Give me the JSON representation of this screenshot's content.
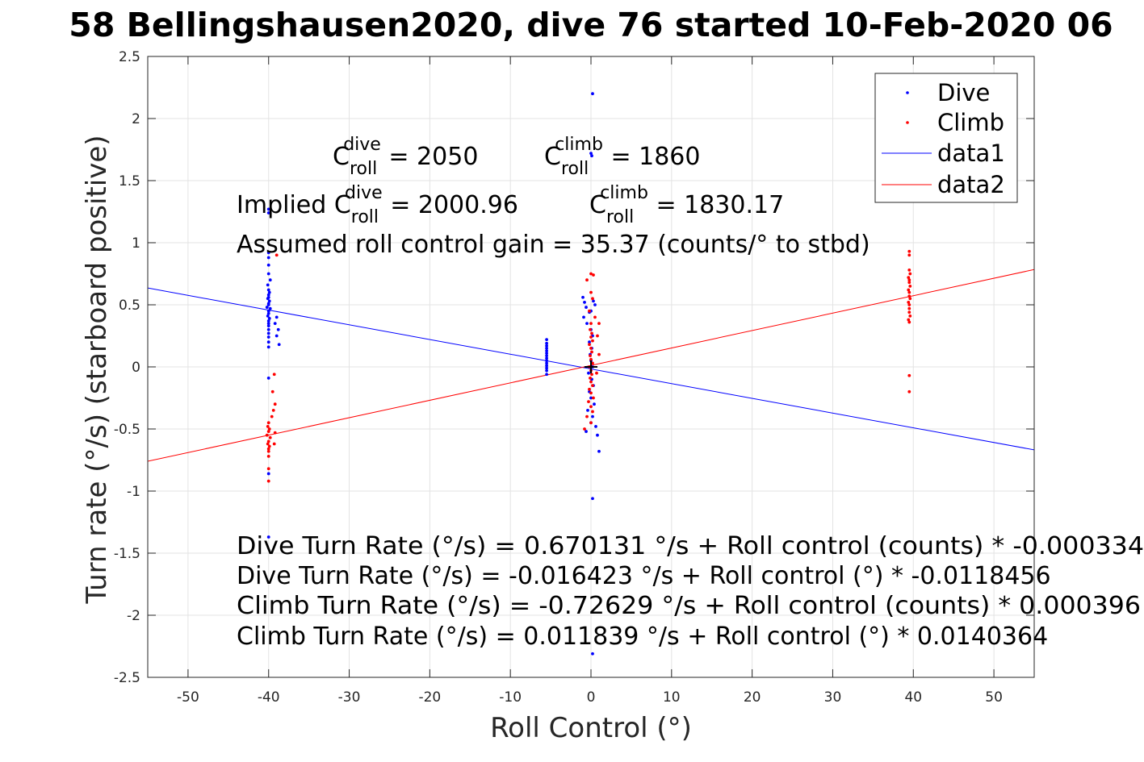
{
  "chart_data": {
    "type": "scatter",
    "title": "58 Bellingshausen2020, dive 76 started 10-Feb-2020 06",
    "xlabel": "Roll Control (°)",
    "ylabel": "Turn rate (°/s) (starboard positive)",
    "xlim": [
      -55,
      55
    ],
    "ylim": [
      -2.5,
      2.5
    ],
    "xticks": [
      "-50",
      "-40",
      "-30",
      "-20",
      "-10",
      "0",
      "10",
      "20",
      "30",
      "40",
      "50"
    ],
    "yticks": [
      "2.5",
      "2",
      "1.5",
      "1",
      "0.5",
      "0",
      "-0.5",
      "-1",
      "-1.5",
      "-2",
      "-2.5"
    ],
    "grid": true,
    "legend_position": "top-right",
    "colors": {
      "dive": "#0000ff",
      "climb": "#ff0000",
      "data1": "#0000ff",
      "data2": "#ff0000"
    },
    "series": [
      {
        "name": "Dive",
        "kind": "points",
        "color": "#0000ff",
        "points": [
          [
            -40,
            1.27
          ],
          [
            -40,
            1.24
          ],
          [
            -40,
            0.92
          ],
          [
            -40,
            0.88
          ],
          [
            -40,
            0.82
          ],
          [
            -40,
            0.75
          ],
          [
            -39.8,
            0.7
          ],
          [
            -40.1,
            0.66
          ],
          [
            -40,
            0.62
          ],
          [
            -39.9,
            0.6
          ],
          [
            -40,
            0.58
          ],
          [
            -40,
            0.56
          ],
          [
            -40.1,
            0.55
          ],
          [
            -39.9,
            0.53
          ],
          [
            -40,
            0.51
          ],
          [
            -40,
            0.5
          ],
          [
            -40.2,
            0.48
          ],
          [
            -39.8,
            0.47
          ],
          [
            -40,
            0.45
          ],
          [
            -40,
            0.43
          ],
          [
            -40.1,
            0.41
          ],
          [
            -39.9,
            0.39
          ],
          [
            -40,
            0.37
          ],
          [
            -40,
            0.35
          ],
          [
            -40,
            0.33
          ],
          [
            -40,
            0.3
          ],
          [
            -40,
            0.27
          ],
          [
            -40,
            0.24
          ],
          [
            -40,
            0.2
          ],
          [
            -40,
            0.16
          ],
          [
            -39.2,
            0.35
          ],
          [
            -38.8,
            0.3
          ],
          [
            -39.0,
            0.25
          ],
          [
            -38.7,
            0.18
          ],
          [
            -39.0,
            0.4
          ],
          [
            -40,
            -0.09
          ],
          [
            -40,
            -0.86
          ],
          [
            -40,
            -1.37
          ],
          [
            -5.5,
            0.22
          ],
          [
            -5.5,
            0.19
          ],
          [
            -5.5,
            0.17
          ],
          [
            -5.5,
            0.15
          ],
          [
            -5.5,
            0.13
          ],
          [
            -5.5,
            0.11
          ],
          [
            -5.5,
            0.09
          ],
          [
            -5.5,
            0.07
          ],
          [
            -5.5,
            0.05
          ],
          [
            -5.5,
            0.03
          ],
          [
            -5.5,
            0.01
          ],
          [
            -5.5,
            -0.01
          ],
          [
            -5.5,
            -0.03
          ],
          [
            -5.5,
            -0.06
          ],
          [
            -1,
            0.56
          ],
          [
            -0.8,
            0.52
          ],
          [
            -0.6,
            0.48
          ],
          [
            -0.9,
            0.4
          ],
          [
            -0.5,
            0.35
          ],
          [
            -0.2,
            0.44
          ],
          [
            0,
            0.45
          ],
          [
            0.3,
            0.53
          ],
          [
            0.5,
            0.5
          ],
          [
            0.2,
            2.2
          ],
          [
            0,
            1.72
          ],
          [
            0.1,
            1.7
          ],
          [
            0,
            0.3
          ],
          [
            0.2,
            0.25
          ],
          [
            -0.2,
            0.2
          ],
          [
            0.1,
            0.15
          ],
          [
            -0.1,
            0.1
          ],
          [
            0,
            0.05
          ],
          [
            0.2,
            0.0
          ],
          [
            -0.3,
            -0.05
          ],
          [
            0.1,
            -0.1
          ],
          [
            0.3,
            -0.15
          ],
          [
            -0.2,
            -0.2
          ],
          [
            0,
            -0.25
          ],
          [
            0.4,
            -0.3
          ],
          [
            -0.4,
            -0.35
          ],
          [
            0.2,
            -0.4
          ],
          [
            0,
            -0.45
          ],
          [
            0.6,
            -0.48
          ],
          [
            0.8,
            -0.55
          ],
          [
            -0.6,
            -0.52
          ],
          [
            1,
            -0.68
          ],
          [
            0.2,
            -1.06
          ],
          [
            0.2,
            -2.31
          ]
        ]
      },
      {
        "name": "Climb",
        "kind": "points",
        "color": "#ff0000",
        "points": [
          [
            -39,
            0.9
          ],
          [
            -39.3,
            -0.06
          ],
          [
            -39.5,
            -0.2
          ],
          [
            -39.2,
            -0.3
          ],
          [
            -40,
            -0.45
          ],
          [
            -40.1,
            -0.48
          ],
          [
            -39.9,
            -0.5
          ],
          [
            -40,
            -0.52
          ],
          [
            -40.2,
            -0.55
          ],
          [
            -39.8,
            -0.57
          ],
          [
            -40,
            -0.6
          ],
          [
            -40.1,
            -0.62
          ],
          [
            -39.9,
            -0.64
          ],
          [
            -40,
            -0.66
          ],
          [
            -40,
            -0.68
          ],
          [
            -39.6,
            -0.4
          ],
          [
            -39.4,
            -0.35
          ],
          [
            -39.2,
            -0.53
          ],
          [
            -39.3,
            -0.62
          ],
          [
            -40,
            -0.72
          ],
          [
            -40,
            -0.82
          ],
          [
            -40,
            -0.92
          ],
          [
            39.5,
            0.93
          ],
          [
            39.5,
            0.9
          ],
          [
            39.5,
            0.78
          ],
          [
            39.6,
            0.75
          ],
          [
            39.4,
            0.72
          ],
          [
            39.5,
            0.7
          ],
          [
            39.5,
            0.68
          ],
          [
            39.6,
            0.65
          ],
          [
            39.4,
            0.62
          ],
          [
            39.5,
            0.6
          ],
          [
            39.5,
            0.57
          ],
          [
            39.6,
            0.55
          ],
          [
            39.4,
            0.52
          ],
          [
            39.5,
            0.5
          ],
          [
            39.5,
            0.47
          ],
          [
            39.5,
            0.44
          ],
          [
            39.6,
            0.41
          ],
          [
            39.4,
            0.38
          ],
          [
            39.5,
            0.36
          ],
          [
            39.5,
            -0.07
          ],
          [
            39.5,
            -0.2
          ],
          [
            0,
            0.75
          ],
          [
            0.3,
            0.74
          ],
          [
            -0.5,
            0.7
          ],
          [
            0,
            0.6
          ],
          [
            0.2,
            0.55
          ],
          [
            -0.2,
            0.45
          ],
          [
            0.5,
            0.4
          ],
          [
            0,
            0.35
          ],
          [
            -0.1,
            0.3
          ],
          [
            0.1,
            0.27
          ],
          [
            0,
            0.24
          ],
          [
            0.2,
            0.21
          ],
          [
            -0.2,
            0.18
          ],
          [
            0,
            0.15
          ],
          [
            0.1,
            0.12
          ],
          [
            -0.1,
            0.09
          ],
          [
            0,
            0.06
          ],
          [
            0.2,
            0.03
          ],
          [
            -0.2,
            0.0
          ],
          [
            0,
            -0.03
          ],
          [
            0.1,
            -0.06
          ],
          [
            -0.1,
            -0.09
          ],
          [
            0,
            -0.12
          ],
          [
            0.2,
            -0.15
          ],
          [
            -0.2,
            -0.18
          ],
          [
            0,
            -0.21
          ],
          [
            0.3,
            -0.25
          ],
          [
            -0.3,
            -0.28
          ],
          [
            0,
            -0.32
          ],
          [
            0.2,
            -0.36
          ],
          [
            -0.5,
            -0.4
          ],
          [
            0,
            -0.45
          ],
          [
            -0.8,
            -0.5
          ],
          [
            1,
            0.35
          ],
          [
            0.8,
            0.25
          ],
          [
            1,
            0.1
          ],
          [
            0.7,
            -0.05
          ]
        ]
      },
      {
        "name": "data1",
        "kind": "line",
        "color": "#0000ff",
        "x": [
          -55,
          55
        ],
        "y": [
          0.6352,
          -0.6681
        ]
      },
      {
        "name": "data2",
        "kind": "line",
        "color": "#ff0000",
        "x": [
          -55,
          55
        ],
        "y": [
          -0.7602,
          0.7839
        ]
      }
    ],
    "center_marker": [
      0,
      0
    ],
    "annotations": {
      "c_roll_dive": {
        "base": "C",
        "sub": "roll",
        "sup": "dive",
        "text": " = 2050"
      },
      "c_roll_climb": {
        "base": "C",
        "sub": "roll",
        "sup": "climb",
        "text": " = 1860"
      },
      "implied_prefix": "Implied ",
      "implied_dive": {
        "base": "C",
        "sub": "roll",
        "sup": "dive",
        "text": " = 2000.96"
      },
      "implied_climb": {
        "base": "C",
        "sub": "roll",
        "sup": "climb",
        "text": " = 1830.17"
      },
      "gain": "Assumed roll control gain = 35.37 (counts/° to stbd)",
      "eq1": "Dive Turn Rate (°/s) = 0.670131 °/s + Roll control (counts) * -0.000334",
      "eq2": "Dive Turn Rate (°/s) = -0.016423 °/s + Roll control (°) * -0.0118456",
      "eq3": "Climb Turn Rate (°/s) = -0.72629 °/s + Roll control (counts) * 0.000396",
      "eq4": "Climb Turn Rate (°/s) = 0.011839 °/s + Roll control (°) * 0.0140364"
    }
  }
}
